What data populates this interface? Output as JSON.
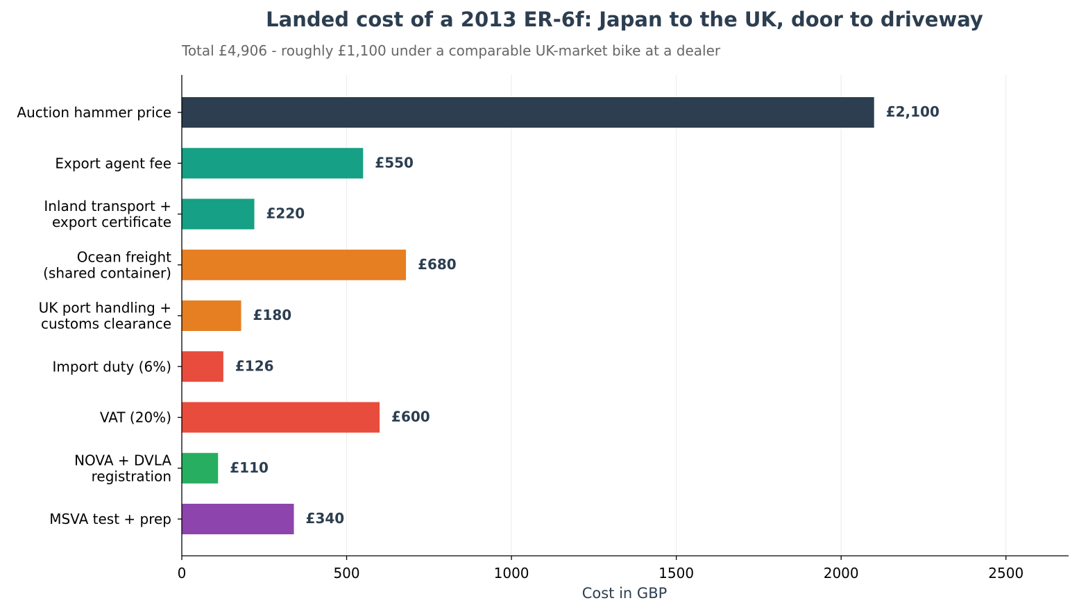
{
  "chart_data": {
    "type": "bar",
    "orientation": "horizontal",
    "title": "Landed cost of a 2013 ER-6f: Japan to the UK, door to driveway",
    "subtitle": "Total £4,906 - roughly £1,100 under a comparable UK-market bike at a dealer",
    "xlabel": "Cost in GBP",
    "ylabel": "",
    "xlim": [
      0,
      2690
    ],
    "xticks": [
      "0",
      "500",
      "1000",
      "1500",
      "2000",
      "2500"
    ],
    "grid": "vertical",
    "categories": [
      [
        "Auction hammer price"
      ],
      [
        "Export agent fee"
      ],
      [
        "Inland transport +",
        "export certificate"
      ],
      [
        "Ocean freight",
        "(shared container)"
      ],
      [
        "UK port handling +",
        "customs clearance"
      ],
      [
        "Import duty (6%)"
      ],
      [
        "VAT (20%)"
      ],
      [
        "NOVA + DVLA",
        "registration"
      ],
      [
        "MSVA test + prep"
      ]
    ],
    "values": [
      2100,
      550,
      220,
      680,
      180,
      126,
      600,
      110,
      340
    ],
    "data_labels": [
      "£2,100",
      "£550",
      "£220",
      "£680",
      "£180",
      "£126",
      "£600",
      "£110",
      "£340"
    ],
    "colors": [
      "#2c3e50",
      "#16a085",
      "#16a085",
      "#e67e22",
      "#e67e22",
      "#e74c3c",
      "#e74c3c",
      "#27ae60",
      "#8e44ad"
    ]
  }
}
